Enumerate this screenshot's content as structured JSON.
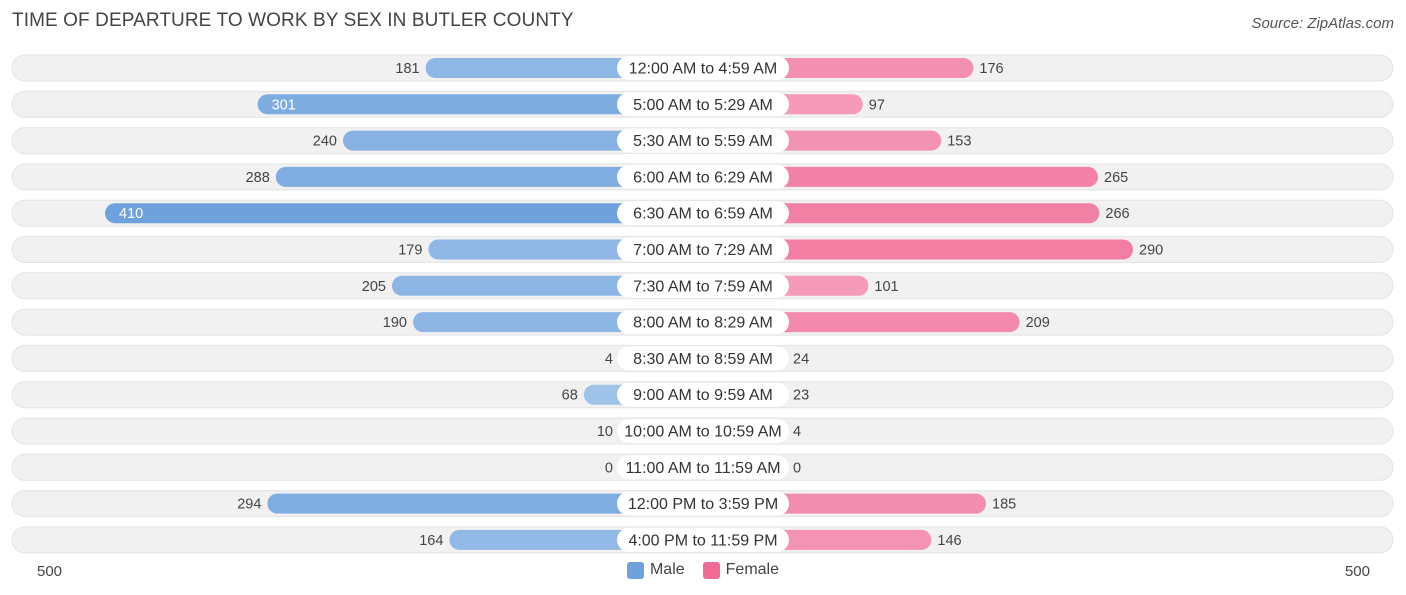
{
  "title": "TIME OF DEPARTURE TO WORK BY SEX IN BUTLER COUNTY",
  "source": "Source: ZipAtlas.com",
  "colors": {
    "male": "#6fa2dc",
    "male_light": "#a9c8ec",
    "female": "#f06c97",
    "female_light": "#f6a9c3",
    "track": "#f1f1f1"
  },
  "legend": {
    "male": "Male",
    "female": "Female"
  },
  "axis": {
    "left": "500",
    "right": "500"
  },
  "chart_data": {
    "type": "bar",
    "orientation": "diverging-horizontal",
    "axis_max": 500,
    "categories": [
      "12:00 AM to 4:59 AM",
      "5:00 AM to 5:29 AM",
      "5:30 AM to 5:59 AM",
      "6:00 AM to 6:29 AM",
      "6:30 AM to 6:59 AM",
      "7:00 AM to 7:29 AM",
      "7:30 AM to 7:59 AM",
      "8:00 AM to 8:29 AM",
      "8:30 AM to 8:59 AM",
      "9:00 AM to 9:59 AM",
      "10:00 AM to 10:59 AM",
      "11:00 AM to 11:59 AM",
      "12:00 PM to 3:59 PM",
      "4:00 PM to 11:59 PM"
    ],
    "series": [
      {
        "name": "Male",
        "values": [
          181,
          301,
          240,
          288,
          410,
          179,
          205,
          190,
          4,
          68,
          10,
          0,
          294,
          164
        ]
      },
      {
        "name": "Female",
        "values": [
          176,
          97,
          153,
          265,
          266,
          290,
          101,
          209,
          24,
          23,
          4,
          0,
          185,
          146
        ]
      }
    ]
  }
}
